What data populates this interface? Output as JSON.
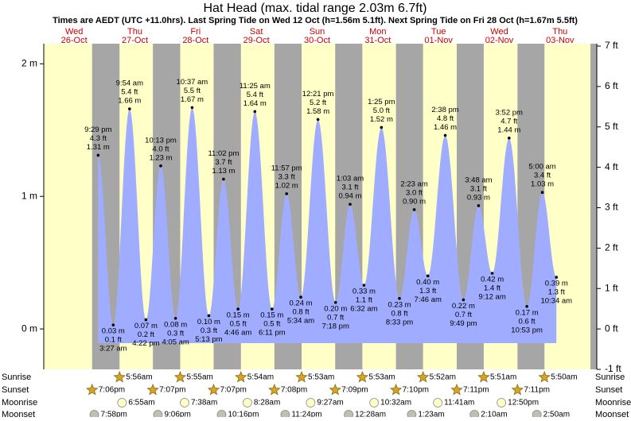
{
  "chart_data": {
    "type": "tide",
    "title": "Hat Head (max. tidal range 2.03m 6.7ft)",
    "subtitle": "Times are AEDT (UTC +11.0hrs). Last Spring Tide on Wed 12 Oct (h=1.56m 5.1ft). Next Spring Tide on Fri 28 Oct (h=1.67m 5.5ft)",
    "ylim": [
      -0.3048,
      2.1336
    ],
    "yticks": [
      {
        "value": 0,
        "label": "0 m"
      },
      {
        "value": 1,
        "label": "1 m"
      },
      {
        "value": 2,
        "label": "2 m"
      }
    ],
    "y2lim": [
      -1,
      7
    ],
    "y2ticks": [
      {
        "value": -1,
        "label": "-1 ft"
      },
      {
        "value": 0,
        "label": "0 ft"
      },
      {
        "value": 1,
        "label": "1 ft"
      },
      {
        "value": 2,
        "label": "2 ft"
      },
      {
        "value": 3,
        "label": "3 ft"
      },
      {
        "value": 4,
        "label": "4 ft"
      },
      {
        "value": 5,
        "label": "5 ft"
      },
      {
        "value": 6,
        "label": "6 ft"
      },
      {
        "value": 7,
        "label": "7 ft"
      }
    ],
    "day_color": "#ffffc8",
    "night_color": "#a6a6a6",
    "tide_color": "#a0acff",
    "days": [
      {
        "weekday": "Wed",
        "date": "26-Oct",
        "sunset": "7:06pm",
        "moonset": "7:58pm"
      },
      {
        "weekday": "Thu",
        "date": "27-Oct",
        "sunrise": "5:56am",
        "sunset": "7:07pm",
        "moonrise": "6:55am",
        "moonset": "9:06pm"
      },
      {
        "weekday": "Fri",
        "date": "28-Oct",
        "sunrise": "5:55am",
        "sunset": "7:07pm",
        "moonrise": "7:38am",
        "moonset": "10:16pm"
      },
      {
        "weekday": "Sat",
        "date": "29-Oct",
        "sunrise": "5:54am",
        "sunset": "7:08pm",
        "moonrise": "8:28am",
        "moonset": "11:24pm"
      },
      {
        "weekday": "Sun",
        "date": "30-Oct",
        "sunrise": "5:53am",
        "sunset": "7:09pm",
        "moonrise": "9:27am"
      },
      {
        "weekday": "Mon",
        "date": "31-Oct",
        "sunrise": "5:53am",
        "sunset": "7:10pm",
        "moonrise": "10:32am",
        "moonset": "12:28am"
      },
      {
        "weekday": "Tue",
        "date": "01-Nov",
        "sunrise": "5:52am",
        "sunset": "7:11pm",
        "moonrise": "11:41am",
        "moonset": "1:23am"
      },
      {
        "weekday": "Wed",
        "date": "02-Nov",
        "sunrise": "5:51am",
        "sunset": "7:11pm",
        "moonrise": "12:50pm",
        "moonset": "2:10am"
      },
      {
        "weekday": "Thu",
        "date": "03-Nov",
        "sunrise": "5:50am",
        "moonset": "2:50am"
      }
    ],
    "row_labels": {
      "sunrise": "Sunrise",
      "sunset": "Sunset",
      "moonrise": "Moonrise",
      "moonset": "Moonset"
    },
    "x": [
      "9:29 pm",
      "3:27 am",
      "9:54 am",
      "4:22 pm",
      "10:13 pm",
      "4:05 am",
      "10:37 am",
      "5:13 pm",
      "11:02 pm",
      "4:46 am",
      "11:25 am",
      "6:11 pm",
      "11:57 pm",
      "5:34 am",
      "12:21 pm",
      "7:18 pm",
      "1:03 am",
      "6:32 am",
      "1:25 pm",
      "8:33 pm",
      "2:23 am",
      "7:46 am",
      "2:38 pm",
      "9:49 pm",
      "3:48 am",
      "9:12 am",
      "3:52 pm",
      "10:53 pm",
      "5:00 am",
      "10:34 am"
    ],
    "values": [
      1.31,
      0.03,
      1.66,
      0.07,
      1.23,
      0.08,
      1.67,
      0.1,
      1.13,
      0.15,
      1.64,
      0.15,
      1.02,
      0.24,
      1.58,
      0.2,
      0.94,
      0.33,
      1.52,
      0.23,
      0.9,
      0.4,
      1.46,
      0.22,
      0.93,
      0.42,
      1.44,
      0.17,
      1.03,
      0.39
    ],
    "value_labels": [
      "1.31 m",
      "0.03 m",
      "1.66 m",
      "0.07 m",
      "1.23 m",
      "0.08 m",
      "1.67 m",
      "0.10 m",
      "1.13 m",
      "0.15 m",
      "1.64 m",
      "0.15 m",
      "1.02 m",
      "0.24 m",
      "1.58 m",
      "0.20 m",
      "0.94 m",
      "0.33 m",
      "1.52 m",
      "0.23 m",
      "0.90 m",
      "0.40 m",
      "1.46 m",
      "0.22 m",
      "0.93 m",
      "0.42 m",
      "1.44 m",
      "0.17 m",
      "1.03 m",
      "0.39 m"
    ],
    "ft_labels": [
      "4.3 ft",
      "0.1 ft",
      "5.4 ft",
      "0.2 ft",
      "4.0 ft",
      "0.3 ft",
      "5.5 ft",
      "0.3 ft",
      "3.7 ft",
      "0.5 ft",
      "5.4 ft",
      "0.5 ft",
      "3.3 ft",
      "0.8 ft",
      "5.2 ft",
      "0.7 ft",
      "3.1 ft",
      "1.1 ft",
      "5.0 ft",
      "0.8 ft",
      "3.0 ft",
      "1.3 ft",
      "4.8 ft",
      "0.7 ft",
      "3.1 ft",
      "1.4 ft",
      "4.7 ft",
      "0.6 ft",
      "3.4 ft",
      "1.3 ft"
    ]
  }
}
